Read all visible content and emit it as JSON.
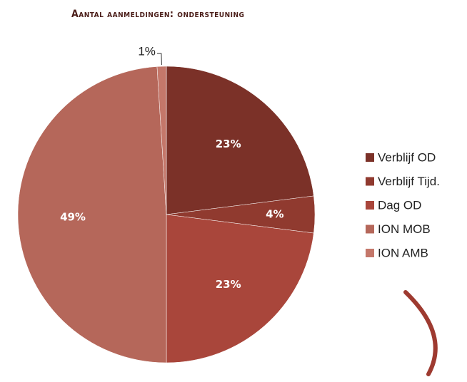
{
  "chart_data": {
    "type": "pie",
    "title": "Aantal aanmeldingen: ondersteuning",
    "categories": [
      "Verblijf OD",
      "Verblijf Tijd.",
      "Dag OD",
      "ION MOB",
      "ION AMB"
    ],
    "values": [
      23,
      4,
      23,
      49,
      1
    ],
    "value_labels": [
      "23%",
      "4%",
      "23%",
      "49%",
      "1%"
    ],
    "colors": [
      "#7b3128",
      "#903a2f",
      "#a9463b",
      "#b5675a",
      "#c4776a"
    ],
    "legend": "right"
  }
}
